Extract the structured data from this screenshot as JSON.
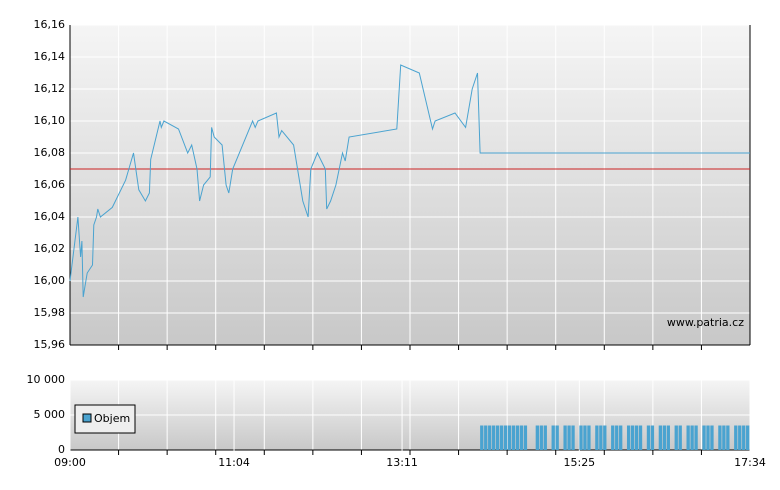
{
  "chart_data": [
    {
      "type": "line",
      "watermark": "www.patria.cz",
      "xlim": [
        "09:00",
        "17:34"
      ],
      "ylim": [
        15.96,
        16.16
      ],
      "yticks": [
        {
          "value": 15.96,
          "label": "15,96"
        },
        {
          "value": 15.98,
          "label": "15,98"
        },
        {
          "value": 16.0,
          "label": "16,00"
        },
        {
          "value": 16.02,
          "label": "16,02"
        },
        {
          "value": 16.04,
          "label": "16,04"
        },
        {
          "value": 16.06,
          "label": "16,06"
        },
        {
          "value": 16.08,
          "label": "16,08"
        },
        {
          "value": 16.1,
          "label": "16,10"
        },
        {
          "value": 16.12,
          "label": "16,12"
        },
        {
          "value": 16.14,
          "label": "16,14"
        },
        {
          "value": 16.16,
          "label": "16,16"
        }
      ],
      "grid": true,
      "reference_line": {
        "value": 16.07,
        "color": "#cc2222"
      },
      "series": [
        {
          "color": "#4aa3d0",
          "x": [
            "09:00",
            "09:06",
            "09:08",
            "09:09",
            "09:10",
            "09:13",
            "09:17",
            "09:18",
            "09:20",
            "09:21",
            "09:23",
            "09:32",
            "09:42",
            "09:48",
            "09:52",
            "09:57",
            "10:00",
            "10:01",
            "10:08",
            "10:09",
            "10:11",
            "10:22",
            "10:29",
            "10:32",
            "10:36",
            "10:38",
            "10:41",
            "10:46",
            "10:47",
            "10:49",
            "10:55",
            "10:58",
            "11:00",
            "11:03",
            "11:18",
            "11:20",
            "11:22",
            "11:36",
            "11:38",
            "11:40",
            "11:49",
            "11:56",
            "12:00",
            "12:02",
            "12:07",
            "12:13",
            "12:14",
            "12:17",
            "12:21",
            "12:26",
            "12:28",
            "12:31",
            "13:07",
            "13:10",
            "13:24",
            "13:34",
            "13:36",
            "13:51",
            "13:59",
            "14:04",
            "14:08",
            "14:10",
            "17:34"
          ],
          "values": [
            16.0,
            16.04,
            16.015,
            16.025,
            15.99,
            16.005,
            16.01,
            16.035,
            16.04,
            16.045,
            16.04,
            16.046,
            16.063,
            16.08,
            16.057,
            16.05,
            16.055,
            16.076,
            16.1,
            16.096,
            16.1,
            16.095,
            16.08,
            16.085,
            16.07,
            16.05,
            16.06,
            16.065,
            16.096,
            16.09,
            16.085,
            16.06,
            16.055,
            16.07,
            16.1,
            16.096,
            16.1,
            16.105,
            16.09,
            16.094,
            16.085,
            16.05,
            16.04,
            16.07,
            16.08,
            16.07,
            16.045,
            16.05,
            16.06,
            16.08,
            16.075,
            16.09,
            16.095,
            16.135,
            16.13,
            16.095,
            16.1,
            16.105,
            16.096,
            16.12,
            16.13,
            16.08,
            16.08
          ]
        }
      ]
    },
    {
      "type": "bar",
      "xlim": [
        "09:00",
        "17:34"
      ],
      "xticks": [
        "09:00",
        "11:04",
        "13:11",
        "15:25",
        "17:34"
      ],
      "ylim": [
        0,
        10000
      ],
      "yticks": [
        0,
        {
          "value": 5000,
          "label": "5 000"
        },
        {
          "value": 10000,
          "label": "10 000"
        }
      ],
      "grid": true,
      "legend": "top-left",
      "series": [
        {
          "name": "Objem",
          "color": "#4aa3d0",
          "x": [
            "14:10",
            "14:13",
            "14:16",
            "14:19",
            "14:22",
            "14:25",
            "14:28",
            "14:31",
            "14:34",
            "14:37",
            "14:40",
            "14:43",
            "14:52",
            "14:55",
            "14:58",
            "15:04",
            "15:07",
            "15:13",
            "15:16",
            "15:19",
            "15:25",
            "15:28",
            "15:31",
            "15:37",
            "15:40",
            "15:43",
            "15:49",
            "15:52",
            "15:55",
            "16:01",
            "16:04",
            "16:07",
            "16:10",
            "16:16",
            "16:19",
            "16:25",
            "16:28",
            "16:31",
            "16:37",
            "16:40",
            "16:46",
            "16:49",
            "16:52",
            "16:58",
            "17:01",
            "17:04",
            "17:10",
            "17:13",
            "17:16",
            "17:22",
            "17:25",
            "17:28",
            "17:31"
          ],
          "values": [
            3500,
            3500,
            3500,
            3500,
            3500,
            3500,
            3500,
            3500,
            3500,
            3500,
            3500,
            3500,
            3500,
            3500,
            3500,
            3500,
            3500,
            3500,
            3500,
            3500,
            3500,
            3500,
            3500,
            3500,
            3500,
            3500,
            3500,
            3500,
            3500,
            3500,
            3500,
            3500,
            3500,
            3500,
            3500,
            3500,
            3500,
            3500,
            3500,
            3500,
            3500,
            3500,
            3500,
            3500,
            3500,
            3500,
            3500,
            3500,
            3500,
            3500,
            3500,
            3500,
            3500
          ]
        }
      ]
    }
  ]
}
